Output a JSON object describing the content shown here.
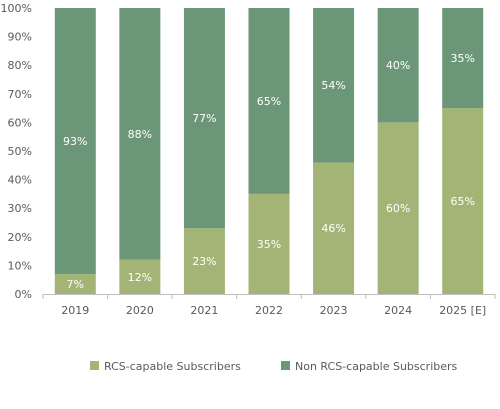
{
  "chart_data": {
    "type": "bar",
    "stacked": true,
    "percent_stacked": true,
    "categories": [
      "2019",
      "2020",
      "2021",
      "2022",
      "2023",
      "2024",
      "2025 [E]"
    ],
    "series": [
      {
        "name": "RCS-capable Subscribers",
        "color": "#a2b476",
        "values": [
          7,
          12,
          23,
          35,
          46,
          60,
          65
        ]
      },
      {
        "name": "Non RCS-capable Subscribers",
        "color": "#6b9677",
        "values": [
          93,
          88,
          77,
          65,
          54,
          40,
          35
        ]
      }
    ],
    "data_label_suffix": "%",
    "ylim": [
      0,
      100
    ],
    "y_ticks": [
      0,
      10,
      20,
      30,
      40,
      50,
      60,
      70,
      80,
      90,
      100
    ],
    "y_tick_suffix": "%",
    "grid": false,
    "legend_position": "bottom",
    "colors": {
      "axis_text": "#5a5a5a",
      "data_label": "#ffffff",
      "axis_line": "#bfbfbf"
    }
  }
}
